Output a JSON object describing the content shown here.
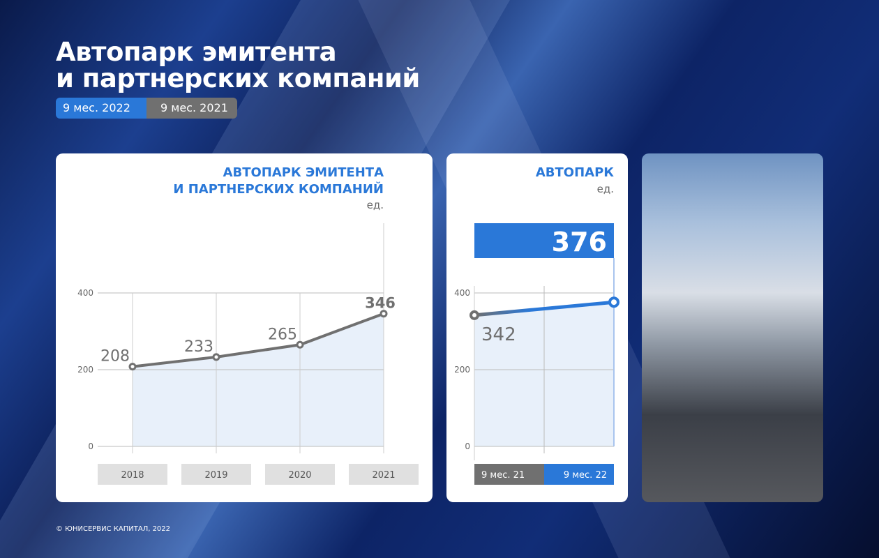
{
  "header": {
    "title_line1": "Автопарк эмитента",
    "title_line2": "и партнерских компаний",
    "legend": [
      {
        "label": "9 мес. 2022",
        "color": "#2a78d8"
      },
      {
        "label": "9 мес. 2021",
        "color": "#707070"
      }
    ]
  },
  "chart_data": [
    {
      "type": "line",
      "title": "АВТОПАРК ЭМИТЕНТА И ПАРТНЕРСКИХ КОМПАНИЙ",
      "title_line1": "АВТОПАРК ЭМИТЕНТА",
      "title_line2": "И ПАРТНЕРСКИХ КОМПАНИЙ",
      "ylabel": "ед.",
      "categories": [
        "2018",
        "2019",
        "2020",
        "2021"
      ],
      "values": [
        208,
        233,
        265,
        346
      ],
      "ylim": [
        0,
        400
      ],
      "yticks": [
        0,
        200,
        400
      ],
      "grid": true,
      "area_fill": true,
      "line_color": "#707070"
    },
    {
      "type": "line",
      "title": "АВТОПАРК",
      "ylabel": "ед.",
      "categories": [
        "9 мес. 21",
        "9 мес. 22"
      ],
      "values": [
        342,
        376
      ],
      "ylim": [
        0,
        400
      ],
      "yticks": [
        0,
        200,
        400
      ],
      "grid": true,
      "highlight_value": "376",
      "colors": [
        "#707070",
        "#2a78d8"
      ]
    }
  ],
  "footer": "© ЮНИСЕРВИС КАПИТАЛ, 2022"
}
